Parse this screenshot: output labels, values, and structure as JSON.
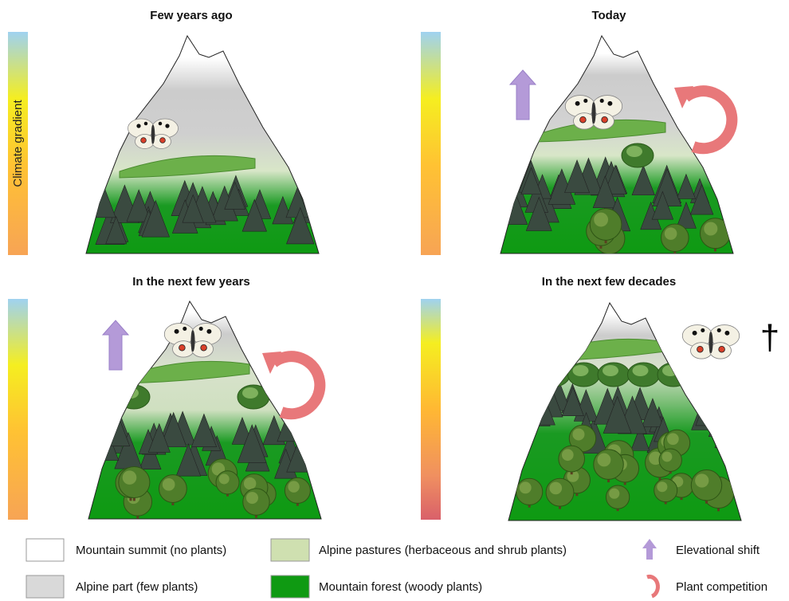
{
  "panels": [
    {
      "title": "Few years ago"
    },
    {
      "title": "Today"
    },
    {
      "title": "In the next few years"
    },
    {
      "title": "In the next few decades"
    }
  ],
  "climate_label": "Climate gradient",
  "legend": [
    {
      "label": "Mountain summit (no plants)"
    },
    {
      "label": "Alpine part (few plants)"
    },
    {
      "label": "Alpine pastures (herbaceous and shrub plants)"
    },
    {
      "label": "Mountain forest (woody plants)"
    },
    {
      "label": "Elevational shift"
    },
    {
      "label": "Plant competition"
    }
  ],
  "extinction_symbol": "†"
}
